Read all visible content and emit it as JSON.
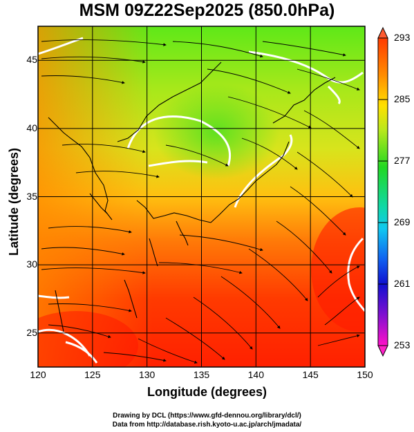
{
  "title": "MSM 09Z22Sep2025 (850.0hPa)",
  "chart_data": {
    "type": "heatmap",
    "xlabel": "Longitude (degrees)",
    "ylabel": "Latitude  (degrees)",
    "xlim": [
      120,
      150
    ],
    "ylim": [
      22.5,
      47.5
    ],
    "xticks": [
      "120",
      "125",
      "130",
      "135",
      "140",
      "145",
      "150"
    ],
    "yticks": [
      "25",
      "30",
      "35",
      "40",
      "45"
    ],
    "grid": true,
    "colorbar": {
      "ticks": [
        "293",
        "285",
        "277",
        "269",
        "261",
        "253"
      ],
      "range": [
        253,
        293
      ]
    }
  },
  "credits": {
    "line1": "Drawing by DCL (https://www.gfd-dennou.org/library/dcl/)",
    "line2": "Data from http://database.rish.kyoto-u.ac.jp/arch/jmadata/"
  },
  "colors": {
    "warm": "#ff2a00",
    "mid": "#ffd000",
    "cool": "#33e020",
    "contour": "#ffffff"
  }
}
